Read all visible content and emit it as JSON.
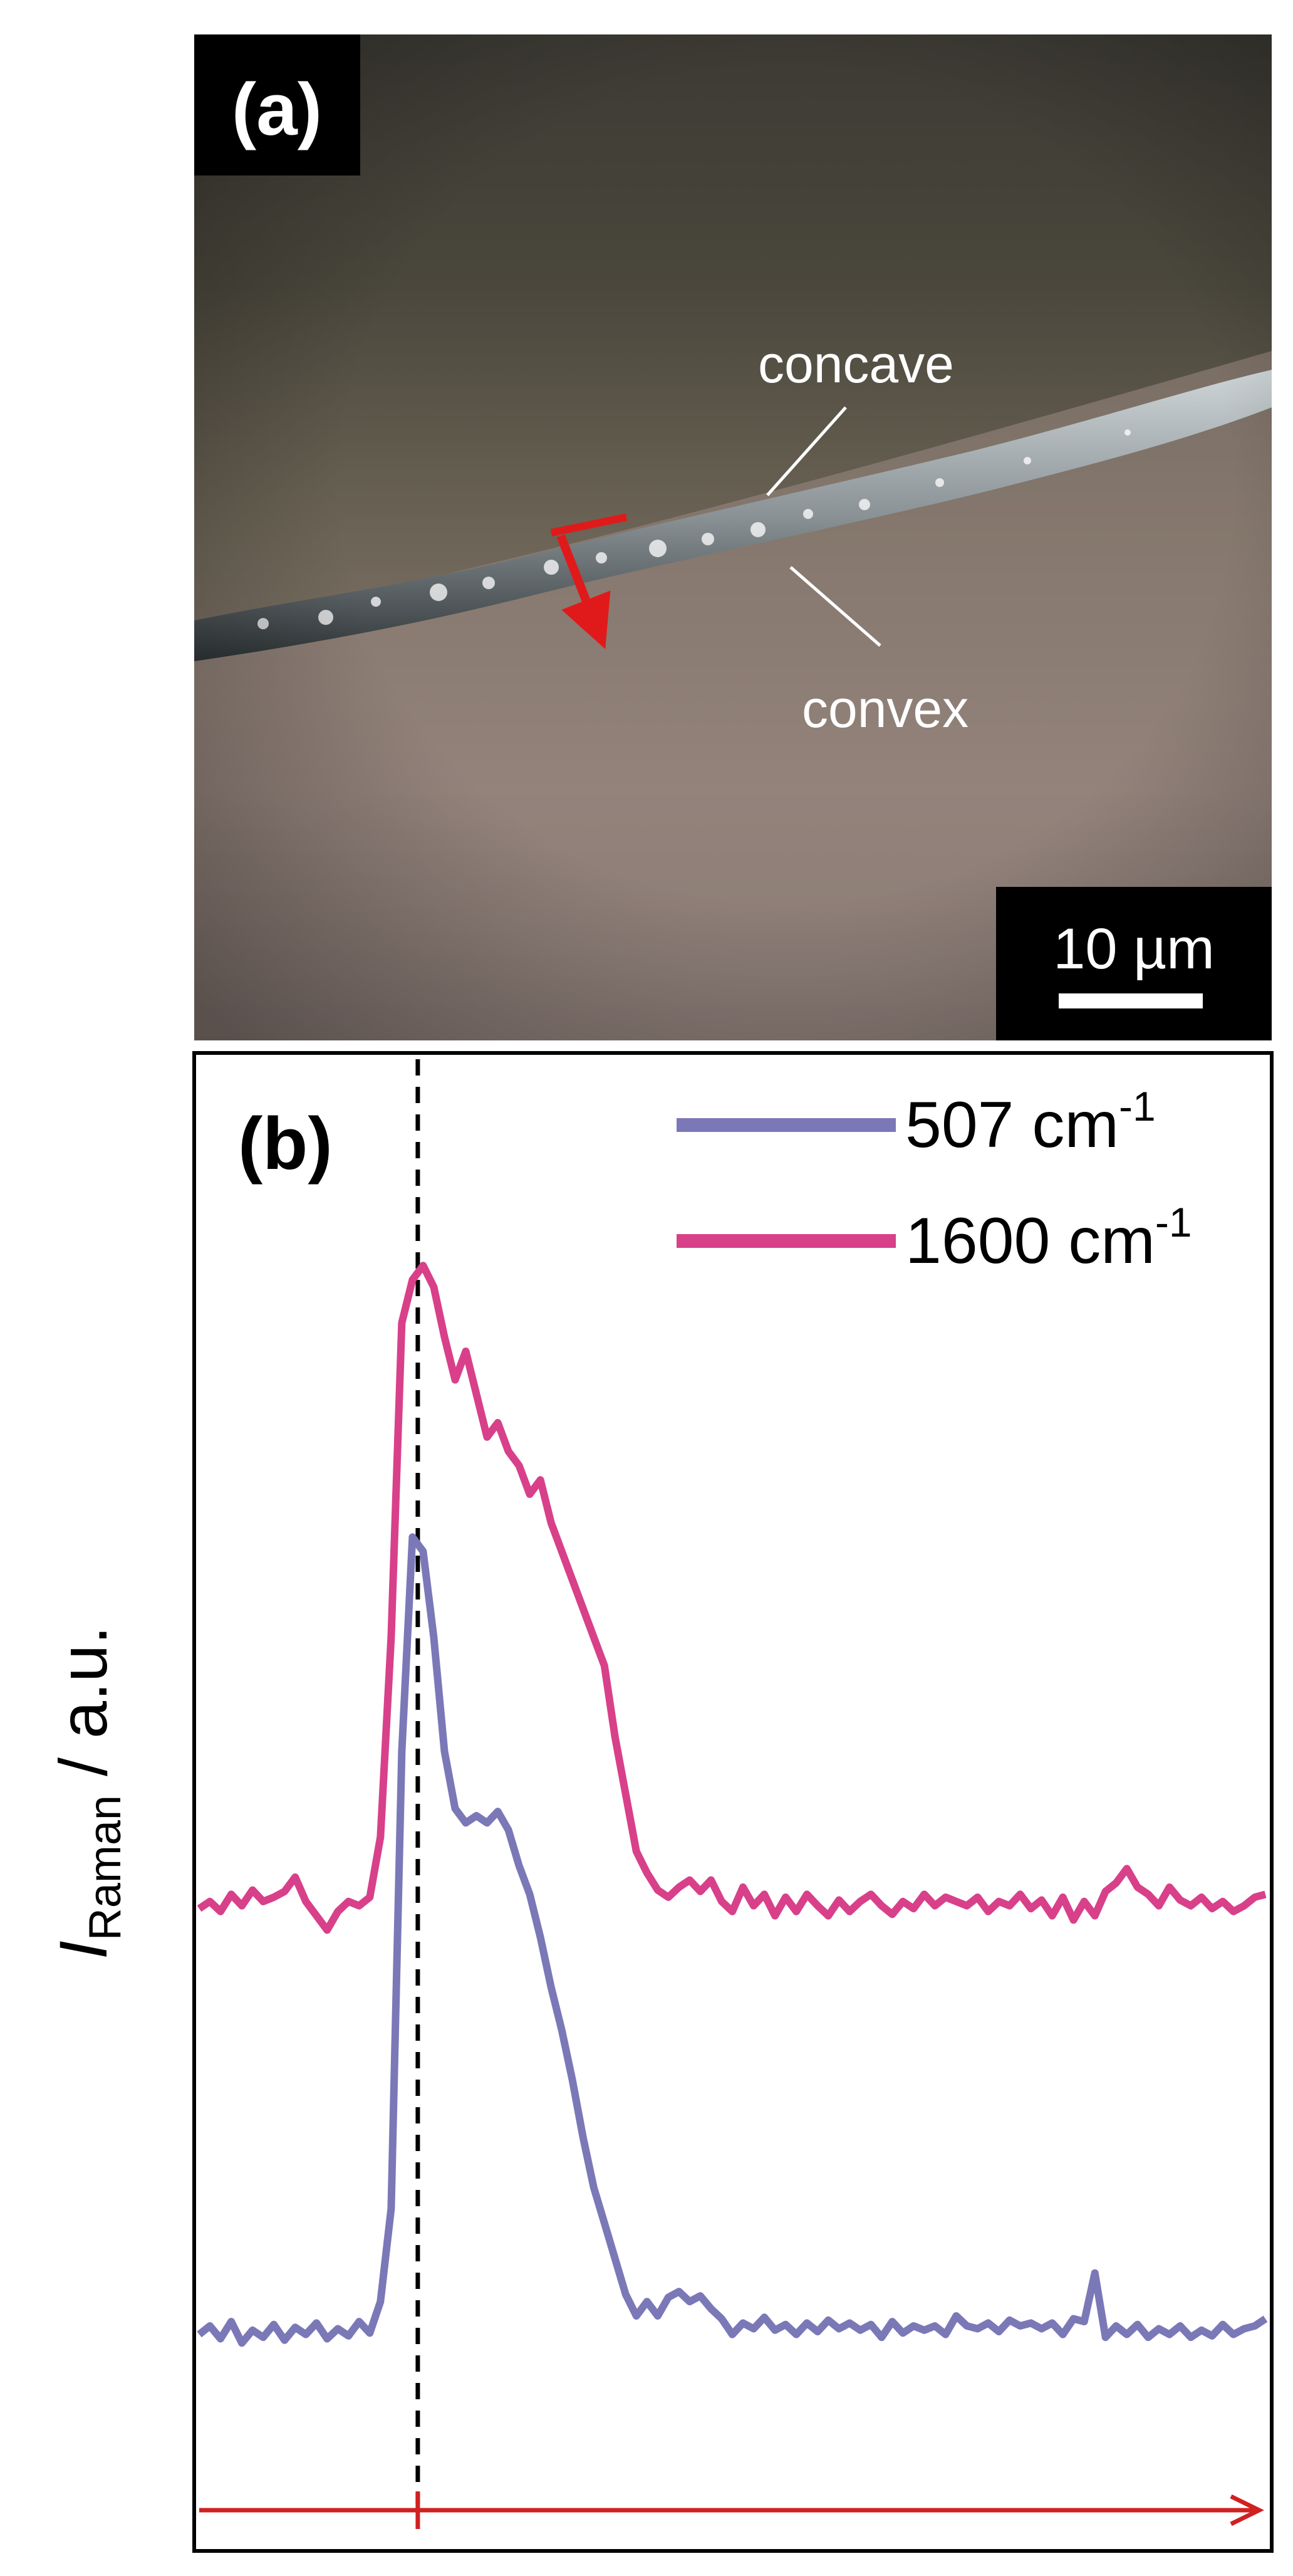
{
  "panel_a": {
    "label": "(a)",
    "annotations": {
      "concave": "concave",
      "convex": "convex"
    },
    "scale_bar_label": "10 µm",
    "colors": {
      "arrow": "#e01a1a"
    }
  },
  "panel_b": {
    "label": "(b)",
    "ylabel_main": "I",
    "ylabel_sub": "Raman",
    "ylabel_rest": " / a.u."
  },
  "chart_data": {
    "type": "line",
    "title": "",
    "xlabel": "",
    "ylabel": "I_Raman / a.u.",
    "grid": false,
    "legend_position": "top-right",
    "x_range": [
      0,
      100
    ],
    "y_range": [
      0,
      100
    ],
    "marker_x": 20.5,
    "scan_arrow": true,
    "series": [
      {
        "name": "507 cm-1",
        "legend": {
          "main": "507 cm",
          "sup": "-1"
        },
        "color": "#7b78b8",
        "points": [
          [
            0,
            11.2
          ],
          [
            1,
            11.8
          ],
          [
            2,
            10.9
          ],
          [
            3,
            12.1
          ],
          [
            4,
            10.6
          ],
          [
            5,
            11.5
          ],
          [
            6,
            11.0
          ],
          [
            7,
            11.9
          ],
          [
            8,
            10.8
          ],
          [
            9,
            11.7
          ],
          [
            10,
            11.2
          ],
          [
            11,
            12.0
          ],
          [
            12,
            10.9
          ],
          [
            13,
            11.6
          ],
          [
            14,
            11.1
          ],
          [
            15,
            12.1
          ],
          [
            16,
            11.3
          ],
          [
            17,
            13.5
          ],
          [
            18,
            20
          ],
          [
            19,
            52
          ],
          [
            20,
            67
          ],
          [
            21,
            66
          ],
          [
            22,
            60
          ],
          [
            23,
            52
          ],
          [
            24,
            48
          ],
          [
            25,
            47
          ],
          [
            26,
            47.5
          ],
          [
            27,
            47
          ],
          [
            28,
            47.8
          ],
          [
            29,
            46.5
          ],
          [
            30,
            44
          ],
          [
            31,
            42
          ],
          [
            32,
            39
          ],
          [
            33,
            35.5
          ],
          [
            34,
            32.5
          ],
          [
            35,
            29
          ],
          [
            36,
            25
          ],
          [
            37,
            21.5
          ],
          [
            38,
            19
          ],
          [
            39,
            16.5
          ],
          [
            40,
            14
          ],
          [
            41,
            12.5
          ],
          [
            42,
            13.5
          ],
          [
            43,
            12.5
          ],
          [
            44,
            13.8
          ],
          [
            45,
            14.2
          ],
          [
            46,
            13.5
          ],
          [
            47,
            13.9
          ],
          [
            48,
            13.0
          ],
          [
            49,
            12.3
          ],
          [
            50,
            11.2
          ],
          [
            51,
            12.0
          ],
          [
            52,
            11.6
          ],
          [
            53,
            12.4
          ],
          [
            54,
            11.5
          ],
          [
            55,
            11.9
          ],
          [
            56,
            11.2
          ],
          [
            57,
            12.0
          ],
          [
            58,
            11.4
          ],
          [
            59,
            12.2
          ],
          [
            60,
            11.6
          ],
          [
            61,
            12.0
          ],
          [
            62,
            11.5
          ],
          [
            63,
            11.9
          ],
          [
            64,
            11.0
          ],
          [
            65,
            12.1
          ],
          [
            66,
            11.3
          ],
          [
            67,
            11.8
          ],
          [
            68,
            11.5
          ],
          [
            69,
            11.8
          ],
          [
            70,
            11.2
          ],
          [
            71,
            12.5
          ],
          [
            72,
            11.8
          ],
          [
            73,
            11.6
          ],
          [
            74,
            12.0
          ],
          [
            75,
            11.4
          ],
          [
            76,
            12.2
          ],
          [
            77,
            11.8
          ],
          [
            78,
            12.0
          ],
          [
            79,
            11.6
          ],
          [
            80,
            12.0
          ],
          [
            81,
            11.2
          ],
          [
            82,
            12.3
          ],
          [
            83,
            12.1
          ],
          [
            84,
            15.5
          ],
          [
            85,
            11.0
          ],
          [
            86,
            11.8
          ],
          [
            87,
            11.2
          ],
          [
            88,
            11.9
          ],
          [
            89,
            11.0
          ],
          [
            90,
            11.6
          ],
          [
            91,
            11.2
          ],
          [
            92,
            11.8
          ],
          [
            93,
            11.0
          ],
          [
            94,
            11.5
          ],
          [
            95,
            11.1
          ],
          [
            96,
            11.9
          ],
          [
            97,
            11.2
          ],
          [
            98,
            11.6
          ],
          [
            99,
            11.8
          ],
          [
            100,
            12.3
          ]
        ]
      },
      {
        "name": "1600 cm-1",
        "legend": {
          "main": "1600 cm",
          "sup": "-1"
        },
        "color": "#d8408a",
        "points": [
          [
            0,
            41.0
          ],
          [
            1,
            41.5
          ],
          [
            2,
            40.8
          ],
          [
            3,
            42.0
          ],
          [
            4,
            41.2
          ],
          [
            5,
            42.3
          ],
          [
            6,
            41.5
          ],
          [
            7,
            41.8
          ],
          [
            8,
            42.2
          ],
          [
            9,
            43.2
          ],
          [
            10,
            41.5
          ],
          [
            11,
            40.5
          ],
          [
            12,
            39.5
          ],
          [
            13,
            40.8
          ],
          [
            14,
            41.5
          ],
          [
            15,
            41.2
          ],
          [
            16,
            41.8
          ],
          [
            17,
            46
          ],
          [
            18,
            60
          ],
          [
            19,
            82
          ],
          [
            20,
            85
          ],
          [
            21,
            86
          ],
          [
            22,
            84.5
          ],
          [
            23,
            81
          ],
          [
            24,
            78
          ],
          [
            25,
            80
          ],
          [
            26,
            77
          ],
          [
            27,
            74
          ],
          [
            28,
            75
          ],
          [
            29,
            73
          ],
          [
            30,
            72
          ],
          [
            31,
            70
          ],
          [
            32,
            71
          ],
          [
            33,
            68
          ],
          [
            34,
            66
          ],
          [
            35,
            64
          ],
          [
            36,
            62
          ],
          [
            37,
            60
          ],
          [
            38,
            58
          ],
          [
            39,
            53
          ],
          [
            40,
            49
          ],
          [
            41,
            45
          ],
          [
            42,
            43.5
          ],
          [
            43,
            42.3
          ],
          [
            44,
            41.8
          ],
          [
            45,
            42.5
          ],
          [
            46,
            43
          ],
          [
            47,
            42.2
          ],
          [
            48,
            43
          ],
          [
            49,
            41.5
          ],
          [
            50,
            40.8
          ],
          [
            51,
            42.5
          ],
          [
            52,
            41.2
          ],
          [
            53,
            42
          ],
          [
            54,
            40.5
          ],
          [
            55,
            41.8
          ],
          [
            56,
            40.8
          ],
          [
            57,
            42
          ],
          [
            58,
            41.2
          ],
          [
            59,
            40.5
          ],
          [
            60,
            41.6
          ],
          [
            61,
            40.8
          ],
          [
            62,
            41.5
          ],
          [
            63,
            42
          ],
          [
            64,
            41.2
          ],
          [
            65,
            40.6
          ],
          [
            66,
            41.5
          ],
          [
            67,
            41
          ],
          [
            68,
            42
          ],
          [
            69,
            41.2
          ],
          [
            70,
            41.8
          ],
          [
            71,
            41.5
          ],
          [
            72,
            41.2
          ],
          [
            73,
            41.8
          ],
          [
            74,
            40.8
          ],
          [
            75,
            41.5
          ],
          [
            76,
            41.2
          ],
          [
            77,
            42
          ],
          [
            78,
            41
          ],
          [
            79,
            41.6
          ],
          [
            80,
            40.5
          ],
          [
            81,
            41.8
          ],
          [
            82,
            40.2
          ],
          [
            83,
            41.5
          ],
          [
            84,
            40.5
          ],
          [
            85,
            42.2
          ],
          [
            86,
            42.8
          ],
          [
            87,
            43.8
          ],
          [
            88,
            42.5
          ],
          [
            89,
            42
          ],
          [
            90,
            41.2
          ],
          [
            91,
            42.5
          ],
          [
            92,
            41.6
          ],
          [
            93,
            41.2
          ],
          [
            94,
            41.8
          ],
          [
            95,
            41
          ],
          [
            96,
            41.5
          ],
          [
            97,
            40.8
          ],
          [
            98,
            41.2
          ],
          [
            99,
            41.8
          ],
          [
            100,
            42.0
          ]
        ]
      }
    ]
  }
}
